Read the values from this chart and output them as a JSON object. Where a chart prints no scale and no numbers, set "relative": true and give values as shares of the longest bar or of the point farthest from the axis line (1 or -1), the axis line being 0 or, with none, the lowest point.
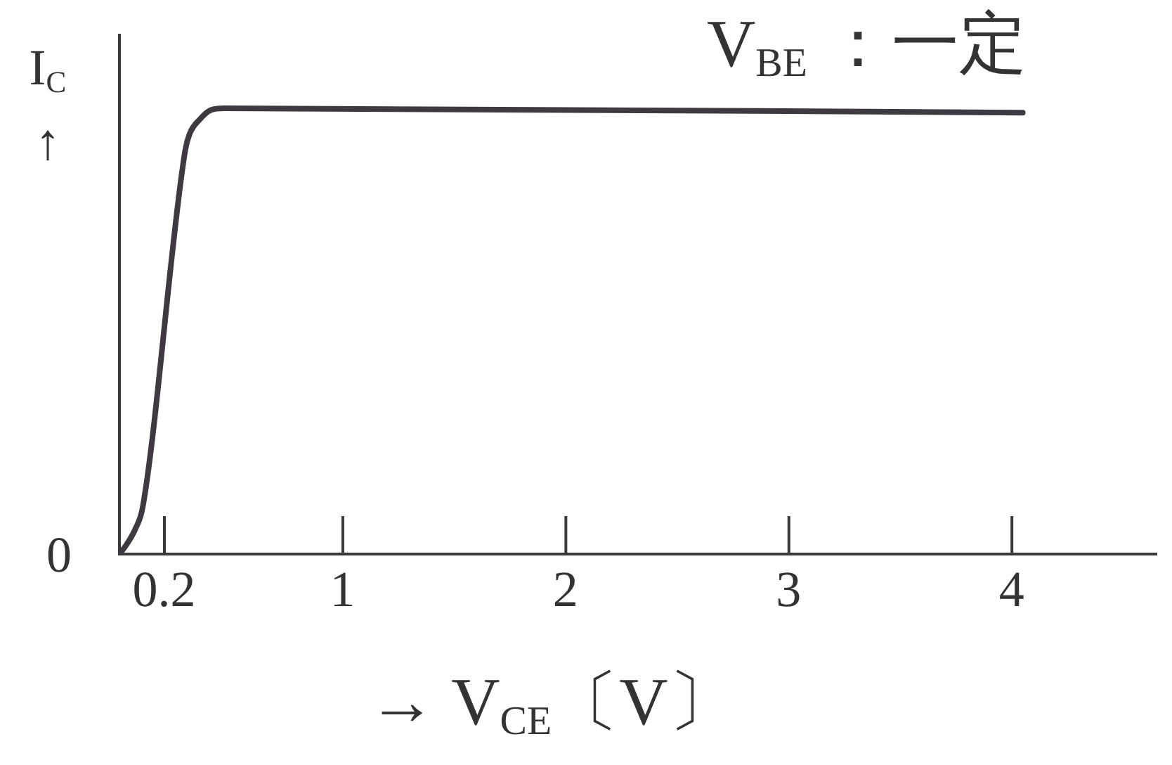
{
  "chart_data": {
    "type": "line",
    "xlabel": "→ V$_{CE}$〔V〕",
    "ylabel": "I$_{C}$ ↑",
    "annotations": [
      "V$_{BE}$ ：一定",
      {
        "text": "0",
        "x": 0,
        "y": 0
      }
    ],
    "relative": true,
    "x": [
      0,
      0.03,
      0.07,
      0.105,
      0.295,
      0.315,
      0.36,
      0.41,
      0.47,
      4.05
    ],
    "values": [
      0,
      0.02,
      0.055,
      0.107,
      0.906,
      0.943,
      0.975,
      0.996,
      1,
      0.99
    ],
    "color": "#3f3a42",
    "xlim": [
      0,
      4.65
    ],
    "xticks": [
      0.2,
      1,
      2,
      3,
      4
    ],
    "marker": "none"
  }
}
